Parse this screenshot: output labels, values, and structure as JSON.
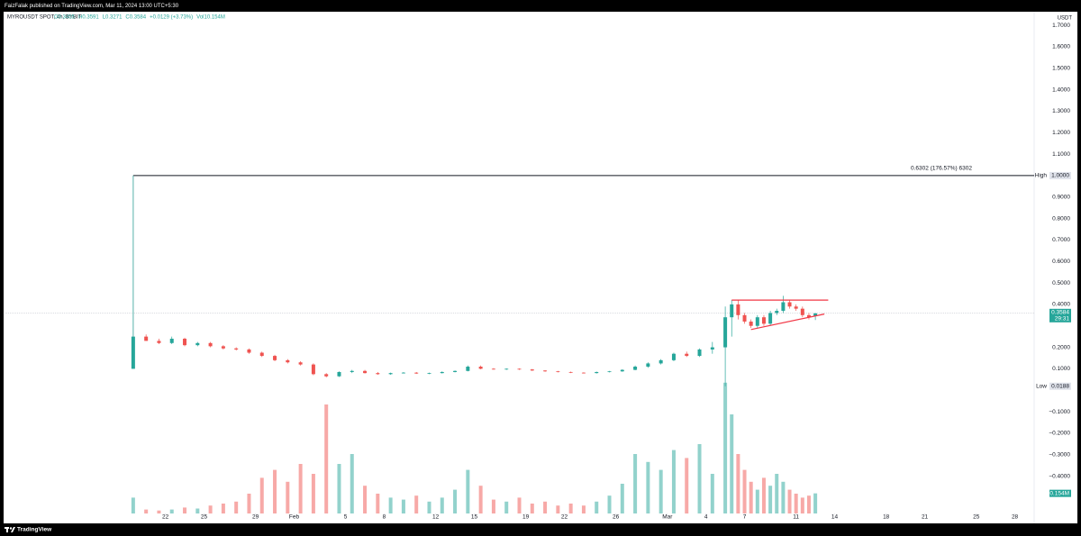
{
  "header": {
    "published": "FaizFalak published on TradingView.com, Mar 11, 2024 13:00 UTC+5:30"
  },
  "footer": {
    "brand": "TradingView"
  },
  "chart_data": {
    "type": "candlestick",
    "symbol": "MYROUSDT SPOT, 4h, BYBIT",
    "ohlc_header": [
      "O0.3455",
      "H0.3591",
      "L0.3271",
      "C0.3584",
      "+0.0129 (+3.73%)",
      "Vol10.154M"
    ],
    "currency": "USDT",
    "up_color": "#26a69a",
    "down_color": "#ef5350",
    "grid": false,
    "xlim": [
      9.5,
      89.5
    ],
    "xticks": [
      {
        "value": 22,
        "label": "22"
      },
      {
        "value": 25,
        "label": "25"
      },
      {
        "value": 29,
        "label": "29"
      },
      {
        "value": 32,
        "label": "Feb"
      },
      {
        "value": 36,
        "label": "5"
      },
      {
        "value": 39,
        "label": "8"
      },
      {
        "value": 43,
        "label": "12"
      },
      {
        "value": 46,
        "label": "15"
      },
      {
        "value": 50,
        "label": "19"
      },
      {
        "value": 53,
        "label": "22"
      },
      {
        "value": 57,
        "label": "26"
      },
      {
        "value": 61,
        "label": "Mar"
      },
      {
        "value": 64,
        "label": "4"
      },
      {
        "value": 67,
        "label": "7"
      },
      {
        "value": 71,
        "label": "11"
      },
      {
        "value": 74,
        "label": "14"
      },
      {
        "value": 78,
        "label": "18"
      },
      {
        "value": 81,
        "label": "21"
      },
      {
        "value": 85,
        "label": "25"
      },
      {
        "value": 88,
        "label": "28"
      }
    ],
    "ylim": [
      -0.574,
      1.755
    ],
    "yticks": [
      {
        "value": 1.7,
        "label": "1.7000"
      },
      {
        "value": 1.6,
        "label": "1.6000"
      },
      {
        "value": 1.5,
        "label": "1.5000"
      },
      {
        "value": 1.4,
        "label": "1.4000"
      },
      {
        "value": 1.3,
        "label": "1.3000"
      },
      {
        "value": 1.2,
        "label": "1.2000"
      },
      {
        "value": 1.1,
        "label": "1.1000"
      },
      {
        "value": 0.9,
        "label": "0.9000"
      },
      {
        "value": 0.8,
        "label": "0.8000"
      },
      {
        "value": 0.7,
        "label": "0.7000"
      },
      {
        "value": 0.6,
        "label": "0.6000"
      },
      {
        "value": 0.5,
        "label": "0.5000"
      },
      {
        "value": 0.4,
        "label": "0.4000"
      },
      {
        "value": 0.2,
        "label": "0.2000"
      },
      {
        "value": 0.1,
        "label": "0.1000"
      },
      {
        "value": -0.1,
        "label": "−0.1000"
      },
      {
        "value": -0.2,
        "label": "−0.2000"
      },
      {
        "value": -0.3,
        "label": "−0.3000"
      },
      {
        "value": -0.4,
        "label": "−0.4000"
      }
    ],
    "x": [
      19.5,
      20.5,
      21.5,
      22.5,
      23.5,
      24.5,
      25.5,
      26.5,
      27.5,
      28.5,
      29.5,
      30.5,
      31.5,
      32.5,
      33.5,
      34.5,
      35.5,
      36.5,
      37.5,
      38.5,
      39.5,
      40.5,
      41.5,
      42.5,
      43.5,
      44.5,
      45.5,
      46.5,
      47.5,
      48.5,
      49.5,
      50.5,
      51.5,
      52.5,
      53.5,
      54.5,
      55.5,
      56.5,
      57.5,
      58.5,
      59.5,
      60.5,
      61.5,
      62.5,
      63.5,
      64.5,
      65.5,
      66,
      66.5,
      67,
      67.5,
      68,
      68.5,
      69,
      69.5,
      70,
      70.5,
      71,
      71.5,
      72,
      72.5
    ],
    "open": [
      0.1,
      0.25,
      0.23,
      0.22,
      0.24,
      0.21,
      0.22,
      0.205,
      0.195,
      0.19,
      0.175,
      0.16,
      0.14,
      0.13,
      0.12,
      0.075,
      0.065,
      0.085,
      0.09,
      0.08,
      0.075,
      0.08,
      0.082,
      0.078,
      0.08,
      0.085,
      0.09,
      0.11,
      0.1,
      0.098,
      0.1,
      0.097,
      0.092,
      0.088,
      0.085,
      0.082,
      0.08,
      0.085,
      0.088,
      0.095,
      0.11,
      0.125,
      0.14,
      0.17,
      0.16,
      0.19,
      0.2,
      0.34,
      0.4,
      0.35,
      0.32,
      0.3,
      0.34,
      0.31,
      0.36,
      0.37,
      0.41,
      0.39,
      0.38,
      0.35,
      0.3455
    ],
    "high": [
      1.0,
      0.26,
      0.24,
      0.25,
      0.245,
      0.225,
      0.225,
      0.21,
      0.2,
      0.195,
      0.18,
      0.165,
      0.145,
      0.135,
      0.125,
      0.08,
      0.088,
      0.095,
      0.095,
      0.085,
      0.082,
      0.085,
      0.085,
      0.082,
      0.088,
      0.092,
      0.115,
      0.115,
      0.103,
      0.102,
      0.102,
      0.099,
      0.094,
      0.09,
      0.087,
      0.084,
      0.087,
      0.09,
      0.098,
      0.115,
      0.13,
      0.145,
      0.175,
      0.18,
      0.195,
      0.225,
      0.39,
      0.42,
      0.42,
      0.36,
      0.33,
      0.35,
      0.35,
      0.37,
      0.38,
      0.44,
      0.42,
      0.4,
      0.39,
      0.36,
      0.3591
    ],
    "low": [
      0.1,
      0.23,
      0.215,
      0.215,
      0.205,
      0.205,
      0.2,
      0.19,
      0.185,
      0.17,
      0.155,
      0.135,
      0.125,
      0.115,
      0.07,
      0.06,
      0.062,
      0.08,
      0.078,
      0.072,
      0.072,
      0.078,
      0.076,
      0.075,
      0.078,
      0.083,
      0.088,
      0.098,
      0.096,
      0.095,
      0.095,
      0.09,
      0.086,
      0.083,
      0.08,
      0.078,
      0.078,
      0.083,
      0.086,
      0.093,
      0.105,
      0.12,
      0.135,
      0.155,
      0.155,
      0.17,
      0.0188,
      0.25,
      0.33,
      0.31,
      0.29,
      0.29,
      0.3,
      0.3,
      0.35,
      0.36,
      0.38,
      0.37,
      0.34,
      0.33,
      0.3271
    ],
    "close": [
      0.25,
      0.23,
      0.22,
      0.24,
      0.21,
      0.22,
      0.205,
      0.195,
      0.19,
      0.175,
      0.16,
      0.14,
      0.13,
      0.12,
      0.075,
      0.065,
      0.085,
      0.09,
      0.08,
      0.075,
      0.08,
      0.082,
      0.078,
      0.08,
      0.085,
      0.09,
      0.11,
      0.1,
      0.098,
      0.1,
      0.097,
      0.092,
      0.088,
      0.085,
      0.082,
      0.08,
      0.085,
      0.088,
      0.095,
      0.11,
      0.125,
      0.14,
      0.17,
      0.16,
      0.19,
      0.2,
      0.34,
      0.4,
      0.35,
      0.32,
      0.3,
      0.34,
      0.31,
      0.36,
      0.37,
      0.41,
      0.39,
      0.38,
      0.35,
      0.34,
      0.3584
    ],
    "volume": [
      8,
      2,
      1.5,
      2,
      3,
      2.5,
      4,
      5,
      6,
      10,
      18,
      22,
      16,
      25,
      20,
      55,
      25,
      30,
      14,
      10,
      8,
      7,
      9,
      6,
      8,
      12,
      22,
      14,
      7,
      6,
      8,
      5,
      6,
      4,
      5,
      4,
      6,
      9,
      15,
      30,
      26,
      22,
      32,
      28,
      35,
      20,
      66,
      50,
      30,
      22,
      16,
      12,
      18,
      14,
      20,
      16,
      12,
      10,
      8,
      9,
      10.154
    ],
    "vlim": [
      0,
      100
    ],
    "last_volume_label": "10.154M",
    "current_price": {
      "value": 0.3584,
      "label": "0.3584",
      "countdown": "29:31"
    },
    "high_marker": {
      "name": "High",
      "value": 1.0,
      "label": "1.0000"
    },
    "low_marker": {
      "name": "Low",
      "value": 0.0188,
      "label": "0.0188"
    },
    "measure_label": "0.6302 (176.57%) 6302",
    "trendline_color": "#f23645",
    "trendlines": [
      {
        "x": [
          66,
          73.5
        ],
        "y": [
          0.42,
          0.42
        ]
      },
      {
        "x": [
          67.5,
          73.2
        ],
        "y": [
          0.283,
          0.355
        ]
      }
    ]
  }
}
